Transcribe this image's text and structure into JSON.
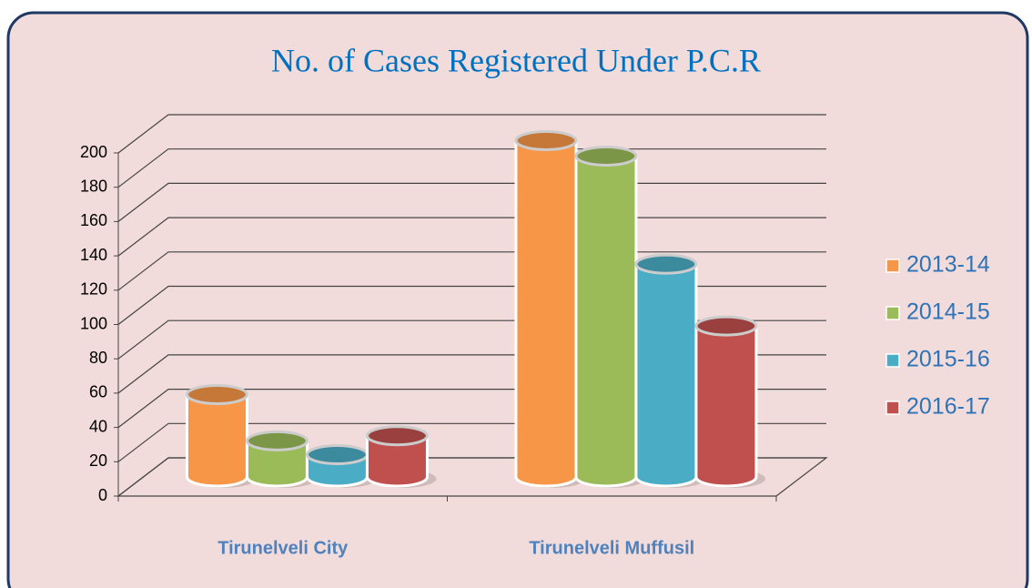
{
  "chart_data": {
    "type": "bar3d",
    "title": "No. of Cases Registered Under P.C.R",
    "categories": [
      "Tirunelveli City",
      "Tirunelveli Muffusil"
    ],
    "series": [
      {
        "name": "2013-14",
        "color": "#f79646",
        "values": [
          48,
          196
        ]
      },
      {
        "name": "2014-15",
        "color": "#9bbb59",
        "values": [
          21,
          187
        ]
      },
      {
        "name": "2015-16",
        "color": "#4bacc6",
        "values": [
          13,
          124
        ]
      },
      {
        "name": "2016-17",
        "color": "#c0504d",
        "values": [
          24,
          88
        ]
      }
    ],
    "ylim": [
      0,
      200
    ],
    "yticks": [
      0,
      20,
      40,
      60,
      80,
      100,
      120,
      140,
      160,
      180,
      200
    ],
    "grid": true,
    "legend": "right"
  }
}
